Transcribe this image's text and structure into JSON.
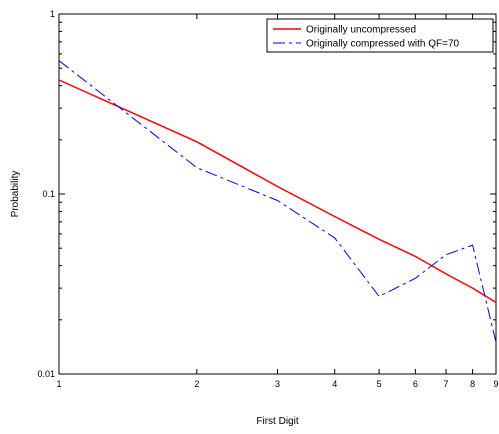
{
  "chart_data": {
    "type": "line",
    "xlabel": "First Digit",
    "ylabel": "Probability",
    "xscale": "log",
    "yscale": "log",
    "xlim": [
      1,
      9
    ],
    "ylim": [
      0.01,
      1
    ],
    "x_ticks": [
      1,
      2,
      3,
      4,
      5,
      6,
      7,
      8,
      9
    ],
    "x_tick_labels": [
      "1",
      "2",
      "3",
      "4",
      "5",
      "6",
      "7",
      "8",
      "9"
    ],
    "y_ticks": [
      0.01,
      0.1,
      1
    ],
    "y_tick_labels": [
      "0.01",
      "0.1",
      "1"
    ],
    "grid": false,
    "legend_position": "top-right",
    "series": [
      {
        "name": "Originally uncompressed",
        "color": "#ff0000",
        "style": "solid",
        "x": [
          1,
          2,
          3,
          4,
          5,
          6,
          7,
          8,
          9
        ],
        "y": [
          0.43,
          0.195,
          0.11,
          0.075,
          0.056,
          0.045,
          0.036,
          0.03,
          0.025
        ]
      },
      {
        "name": "Originally compressed with QF=70",
        "color": "#0000ff",
        "style": "dashdot",
        "x": [
          1,
          2,
          3,
          4,
          5,
          6,
          7,
          8,
          9
        ],
        "y": [
          0.55,
          0.14,
          0.092,
          0.057,
          0.027,
          0.034,
          0.046,
          0.052,
          0.015
        ]
      }
    ]
  }
}
